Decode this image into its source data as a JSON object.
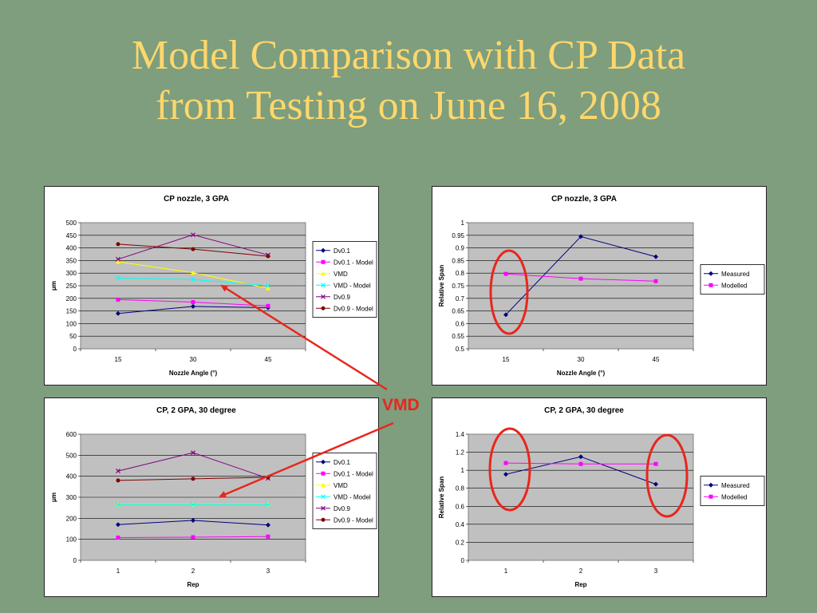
{
  "slide": {
    "title_line1": "Model Comparison with CP Data",
    "title_line2": "from Testing on June 16, 2008",
    "callout_label": "VMD"
  },
  "colors": {
    "background": "#7e9e7e",
    "title": "#ffd76b",
    "plot_area": "#c0c0c0",
    "annotation": "#e8261c"
  },
  "chart_data": [
    {
      "id": "chart1",
      "type": "line",
      "title": "CP nozzle, 3 GPA",
      "xlabel": "Nozzle Angle (°)",
      "ylabel": "μm",
      "categories": [
        "15",
        "30",
        "45"
      ],
      "ylim": [
        0,
        500
      ],
      "yticks": [
        "0",
        "50",
        "100",
        "150",
        "200",
        "250",
        "300",
        "350",
        "400",
        "450",
        "500"
      ],
      "legend_position": "right",
      "grid": true,
      "series": [
        {
          "name": "Dv0.1",
          "values": [
            140,
            168,
            163
          ],
          "color": "#000080",
          "marker": "diamond"
        },
        {
          "name": "Dv0.1 - Model",
          "values": [
            195,
            185,
            170
          ],
          "color": "#ff00ff",
          "marker": "square"
        },
        {
          "name": "VMD",
          "values": [
            345,
            302,
            240
          ],
          "color": "#ffff00",
          "marker": "triangle"
        },
        {
          "name": "VMD - Model",
          "values": [
            280,
            275,
            250
          ],
          "color": "#00ffff",
          "marker": "x"
        },
        {
          "name": "Dv0.9",
          "values": [
            355,
            452,
            372
          ],
          "color": "#800080",
          "marker": "x"
        },
        {
          "name": "Dv0.9 - Model",
          "values": [
            415,
            395,
            367
          ],
          "color": "#800000",
          "marker": "circle"
        }
      ]
    },
    {
      "id": "chart2",
      "type": "line",
      "title": "CP nozzle, 3 GPA",
      "xlabel": "Nozzle Angle (°)",
      "ylabel": "Relative Span",
      "categories": [
        "15",
        "30",
        "45"
      ],
      "ylim": [
        0.5,
        1
      ],
      "yticks": [
        "0.5",
        "0.55",
        "0.6",
        "0.65",
        "0.7",
        "0.75",
        "0.8",
        "0.85",
        "0.9",
        "0.95",
        "1"
      ],
      "legend_position": "right",
      "grid": true,
      "series": [
        {
          "name": "Measured",
          "values": [
            0.635,
            0.945,
            0.865
          ],
          "color": "#000080",
          "marker": "diamond"
        },
        {
          "name": "Modelled",
          "values": [
            0.797,
            0.778,
            0.768
          ],
          "color": "#ff00ff",
          "marker": "square"
        }
      ]
    },
    {
      "id": "chart3",
      "type": "line",
      "title": "CP, 2 GPA, 30 degree",
      "xlabel": "Rep",
      "ylabel": "μm",
      "categories": [
        "1",
        "2",
        "3"
      ],
      "ylim": [
        0,
        600
      ],
      "yticks": [
        "0",
        "100",
        "200",
        "300",
        "400",
        "500",
        "600"
      ],
      "legend_position": "right",
      "grid": true,
      "series": [
        {
          "name": "Dv0.1",
          "values": [
            170,
            190,
            168
          ],
          "color": "#000080",
          "marker": "diamond"
        },
        {
          "name": "Dv0.1 - Model",
          "values": [
            108,
            110,
            113
          ],
          "color": "#ff00ff",
          "marker": "square"
        },
        {
          "name": "VMD",
          "values": [
            265,
            265,
            265
          ],
          "color": "#ffff00",
          "marker": "triangle"
        },
        {
          "name": "VMD - Model",
          "values": [
            264,
            264,
            264
          ],
          "color": "#00ffff",
          "marker": "x"
        },
        {
          "name": "Dv0.9",
          "values": [
            425,
            512,
            390
          ],
          "color": "#800080",
          "marker": "x"
        },
        {
          "name": "Dv0.9 - Model",
          "values": [
            380,
            388,
            395
          ],
          "color": "#800000",
          "marker": "circle"
        }
      ]
    },
    {
      "id": "chart4",
      "type": "line",
      "title": "CP, 2 GPA, 30 degree",
      "xlabel": "Rep",
      "ylabel": "Relative Span",
      "categories": [
        "1",
        "2",
        "3"
      ],
      "ylim": [
        0,
        1.4
      ],
      "yticks": [
        "0",
        "0.2",
        "0.4",
        "0.6",
        "0.8",
        "1",
        "1.2",
        "1.4"
      ],
      "legend_position": "right",
      "grid": true,
      "series": [
        {
          "name": "Measured",
          "values": [
            0.955,
            1.15,
            0.845
          ],
          "color": "#000080",
          "marker": "diamond"
        },
        {
          "name": "Modelled",
          "values": [
            1.08,
            1.07,
            1.07
          ],
          "color": "#ff00ff",
          "marker": "square"
        }
      ]
    }
  ]
}
